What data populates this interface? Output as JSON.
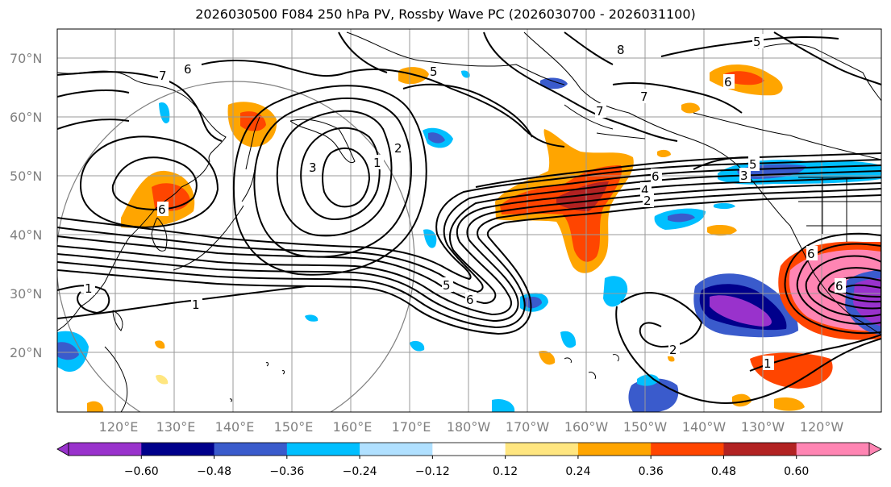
{
  "title": "2026030500 F084 250 hPa PV, Rossby Wave PC (2026030700 - 2026031100)",
  "map": {
    "lon_labels": [
      "120°E",
      "130°E",
      "140°E",
      "150°E",
      "160°E",
      "170°E",
      "180°W",
      "170°W",
      "160°W",
      "150°W",
      "140°W",
      "130°W",
      "120°W"
    ],
    "lat_labels": [
      "20°N",
      "30°N",
      "40°N",
      "50°N",
      "60°N",
      "70°N"
    ],
    "contour_labels": [
      "7",
      "6",
      "6",
      "5",
      "8",
      "5",
      "6",
      "7",
      "7",
      "3",
      "1",
      "2",
      "6",
      "4",
      "2",
      "6",
      "3",
      "5",
      "1",
      "1",
      "5",
      "6",
      "2",
      "1",
      "6"
    ],
    "colors": {
      "coast": "#000000",
      "grid": "#9a9a9a",
      "circle": "#808080"
    }
  },
  "colorbar": {
    "ticks": [
      "−0.60",
      "−0.48",
      "−0.36",
      "−0.24",
      "−0.12",
      "0.12",
      "0.24",
      "0.36",
      "0.48",
      "0.60"
    ],
    "bins": [
      "#9932cc",
      "#00008b",
      "#3a5bcc",
      "#00bfff",
      "#b0e0ff",
      "#ffffff",
      "#ffe680",
      "#ffa500",
      "#ff4500",
      "#b22222",
      "#ff85b3"
    ],
    "under_color": "#9932cc",
    "over_color": "#ff85b3"
  }
}
